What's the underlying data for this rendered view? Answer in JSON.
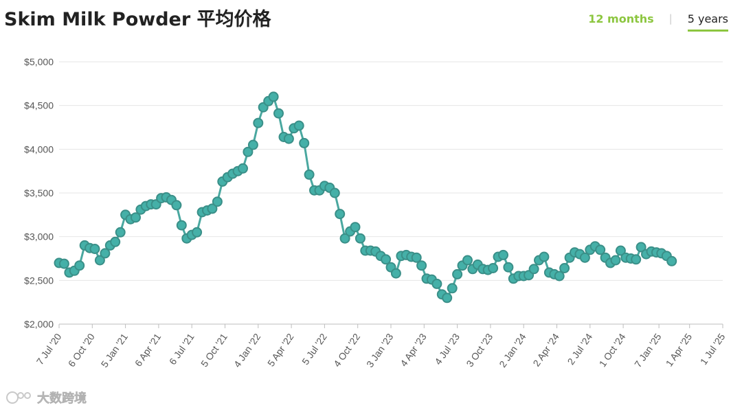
{
  "title": "Skim Milk Powder 平均价格",
  "tabs": [
    {
      "label": "12 months"
    },
    {
      "label": "5 years"
    }
  ],
  "tab_separator": "|",
  "watermark": {
    "text": "大数跨境",
    "icon": "watermark-logo-icon"
  },
  "colors": {
    "line": "#4aa8a0",
    "marker": "#45b0a8",
    "marker_edge": "#3a8f88",
    "accent": "#8cc63f",
    "grid": "#e6e6e6"
  },
  "chart_data": {
    "type": "line",
    "title": "",
    "xlabel": "",
    "ylabel": "",
    "ylim": [
      2000,
      5000
    ],
    "yticks": [
      2000,
      2500,
      3000,
      3500,
      4000,
      4500,
      5000
    ],
    "ytick_labels": [
      "$2,000",
      "$2,500",
      "$3,000",
      "$3,500",
      "$4,000",
      "$4,500",
      "$5,000"
    ],
    "xlim": [
      "2020-07-07",
      "2025-07-01"
    ],
    "xticks": [
      {
        "date": "2020-07-07",
        "label": "7 Jul '20"
      },
      {
        "date": "2020-10-06",
        "label": "6 Oct '20"
      },
      {
        "date": "2021-01-05",
        "label": "5 Jan '21"
      },
      {
        "date": "2021-04-06",
        "label": "6 Apr '21"
      },
      {
        "date": "2021-07-06",
        "label": "6 Jul '21"
      },
      {
        "date": "2021-10-05",
        "label": "5 Oct '21"
      },
      {
        "date": "2022-01-04",
        "label": "4 Jan '22"
      },
      {
        "date": "2022-04-05",
        "label": "5 Apr '22"
      },
      {
        "date": "2022-07-05",
        "label": "5 Jul '22"
      },
      {
        "date": "2022-10-04",
        "label": "4 Oct '22"
      },
      {
        "date": "2023-01-03",
        "label": "3 Jan '23"
      },
      {
        "date": "2023-04-04",
        "label": "4 Apr '23"
      },
      {
        "date": "2023-07-04",
        "label": "4 Jul '23"
      },
      {
        "date": "2023-10-03",
        "label": "3 Oct '23"
      },
      {
        "date": "2024-01-02",
        "label": "2 Jan '24"
      },
      {
        "date": "2024-04-02",
        "label": "2 Apr '24"
      },
      {
        "date": "2024-07-02",
        "label": "2 Jul '24"
      },
      {
        "date": "2024-10-01",
        "label": "1 Oct '24"
      },
      {
        "date": "2025-01-07",
        "label": "7 Jan '25"
      },
      {
        "date": "2025-04-01",
        "label": "1 Apr '25"
      },
      {
        "date": "2025-07-01",
        "label": "1 Jul '25"
      }
    ],
    "grid": true,
    "legend": "none",
    "series": [
      {
        "values": [
          [
            "2020-07-07",
            2700
          ],
          [
            "2020-07-21",
            2690
          ],
          [
            "2020-08-04",
            2590
          ],
          [
            "2020-08-18",
            2610
          ],
          [
            "2020-09-01",
            2670
          ],
          [
            "2020-09-15",
            2900
          ],
          [
            "2020-09-29",
            2870
          ],
          [
            "2020-10-13",
            2860
          ],
          [
            "2020-10-27",
            2730
          ],
          [
            "2020-11-10",
            2810
          ],
          [
            "2020-11-24",
            2900
          ],
          [
            "2020-12-08",
            2940
          ],
          [
            "2020-12-22",
            3050
          ],
          [
            "2021-01-05",
            3250
          ],
          [
            "2021-01-19",
            3200
          ],
          [
            "2021-02-02",
            3220
          ],
          [
            "2021-02-16",
            3310
          ],
          [
            "2021-03-02",
            3350
          ],
          [
            "2021-03-16",
            3370
          ],
          [
            "2021-03-30",
            3370
          ],
          [
            "2021-04-13",
            3440
          ],
          [
            "2021-04-27",
            3450
          ],
          [
            "2021-05-11",
            3420
          ],
          [
            "2021-05-25",
            3360
          ],
          [
            "2021-06-08",
            3130
          ],
          [
            "2021-06-22",
            2980
          ],
          [
            "2021-07-06",
            3020
          ],
          [
            "2021-07-20",
            3050
          ],
          [
            "2021-08-03",
            3280
          ],
          [
            "2021-08-17",
            3300
          ],
          [
            "2021-08-31",
            3320
          ],
          [
            "2021-09-14",
            3400
          ],
          [
            "2021-09-28",
            3630
          ],
          [
            "2021-10-12",
            3680
          ],
          [
            "2021-10-26",
            3720
          ],
          [
            "2021-11-09",
            3750
          ],
          [
            "2021-11-23",
            3780
          ],
          [
            "2021-12-07",
            3970
          ],
          [
            "2021-12-21",
            4050
          ],
          [
            "2022-01-04",
            4300
          ],
          [
            "2022-01-18",
            4480
          ],
          [
            "2022-02-01",
            4550
          ],
          [
            "2022-02-15",
            4600
          ],
          [
            "2022-03-01",
            4410
          ],
          [
            "2022-03-15",
            4140
          ],
          [
            "2022-03-29",
            4120
          ],
          [
            "2022-04-12",
            4240
          ],
          [
            "2022-04-26",
            4270
          ],
          [
            "2022-05-10",
            4070
          ],
          [
            "2022-05-24",
            3710
          ],
          [
            "2022-06-07",
            3530
          ],
          [
            "2022-06-21",
            3530
          ],
          [
            "2022-07-05",
            3580
          ],
          [
            "2022-07-19",
            3560
          ],
          [
            "2022-08-02",
            3500
          ],
          [
            "2022-08-16",
            3260
          ],
          [
            "2022-08-30",
            2980
          ],
          [
            "2022-09-13",
            3060
          ],
          [
            "2022-09-27",
            3110
          ],
          [
            "2022-10-11",
            2980
          ],
          [
            "2022-10-25",
            2840
          ],
          [
            "2022-11-08",
            2840
          ],
          [
            "2022-11-22",
            2830
          ],
          [
            "2022-12-06",
            2780
          ],
          [
            "2022-12-20",
            2740
          ],
          [
            "2023-01-03",
            2650
          ],
          [
            "2023-01-17",
            2580
          ],
          [
            "2023-01-31",
            2780
          ],
          [
            "2023-02-14",
            2790
          ],
          [
            "2023-02-28",
            2770
          ],
          [
            "2023-03-14",
            2760
          ],
          [
            "2023-03-28",
            2670
          ],
          [
            "2023-04-11",
            2520
          ],
          [
            "2023-04-25",
            2510
          ],
          [
            "2023-05-09",
            2460
          ],
          [
            "2023-05-23",
            2340
          ],
          [
            "2023-06-06",
            2300
          ],
          [
            "2023-06-20",
            2410
          ],
          [
            "2023-07-04",
            2570
          ],
          [
            "2023-07-18",
            2670
          ],
          [
            "2023-08-01",
            2730
          ],
          [
            "2023-08-15",
            2630
          ],
          [
            "2023-08-29",
            2680
          ],
          [
            "2023-09-12",
            2630
          ],
          [
            "2023-09-26",
            2620
          ],
          [
            "2023-10-10",
            2640
          ],
          [
            "2023-10-24",
            2770
          ],
          [
            "2023-11-07",
            2790
          ],
          [
            "2023-11-21",
            2650
          ],
          [
            "2023-12-05",
            2520
          ],
          [
            "2023-12-19",
            2550
          ],
          [
            "2024-01-02",
            2550
          ],
          [
            "2024-01-16",
            2560
          ],
          [
            "2024-01-30",
            2630
          ],
          [
            "2024-02-13",
            2730
          ],
          [
            "2024-02-27",
            2770
          ],
          [
            "2024-03-12",
            2590
          ],
          [
            "2024-03-26",
            2570
          ],
          [
            "2024-04-09",
            2550
          ],
          [
            "2024-04-23",
            2640
          ],
          [
            "2024-05-07",
            2760
          ],
          [
            "2024-05-21",
            2820
          ],
          [
            "2024-06-04",
            2800
          ],
          [
            "2024-06-18",
            2760
          ],
          [
            "2024-07-02",
            2850
          ],
          [
            "2024-07-16",
            2890
          ],
          [
            "2024-07-30",
            2850
          ],
          [
            "2024-08-13",
            2760
          ],
          [
            "2024-08-27",
            2700
          ],
          [
            "2024-09-10",
            2730
          ],
          [
            "2024-09-24",
            2840
          ],
          [
            "2024-10-08",
            2760
          ],
          [
            "2024-10-22",
            2750
          ],
          [
            "2024-11-05",
            2740
          ],
          [
            "2024-11-19",
            2880
          ],
          [
            "2024-12-03",
            2800
          ],
          [
            "2024-12-17",
            2830
          ],
          [
            "2024-12-31",
            2820
          ],
          [
            "2025-01-14",
            2810
          ],
          [
            "2025-01-28",
            2780
          ],
          [
            "2025-02-11",
            2720
          ]
        ]
      }
    ]
  }
}
